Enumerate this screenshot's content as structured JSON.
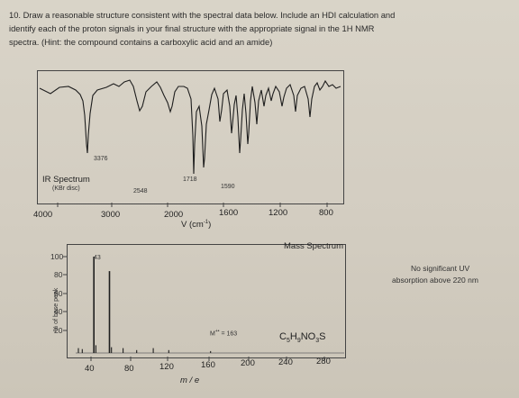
{
  "question": {
    "lines": [
      "10. Draw a reasonable structure consistent with the spectral data below.  Include an HDI calculation and",
      "identify each of the proton signals in your final structure with the appropriate signal in the 1H NMR",
      "spectra. (Hint: the compound contains a carboxylic acid and an amide)"
    ]
  },
  "ir": {
    "title": "IR Spectrum",
    "subtitle": "(KBr disc)",
    "peak_labels": [
      "3376",
      "2548",
      "1718",
      "1590"
    ],
    "x_ticks": [
      "4000",
      "3000",
      "2000",
      "1600",
      "1200",
      "800"
    ],
    "x_label": "V (cm",
    "x_label_sup": "-1",
    "x_label_close": ")"
  },
  "ms": {
    "title": "Mass Spectrum",
    "y_ticks": [
      "100",
      "80",
      "60",
      "40",
      "20"
    ],
    "y_label": "% of base peak",
    "base_peak_label": "43",
    "molecular_ion_label": "M",
    "molecular_ion_sup": "+•",
    "molecular_ion_value": "= 163",
    "formula_parts": [
      "C",
      "5",
      "H",
      "9",
      "NO",
      "3",
      "S"
    ],
    "x_ticks": [
      "40",
      "80",
      "120",
      "160",
      "200",
      "240",
      "280"
    ],
    "x_label": "m / e"
  },
  "uv_note": {
    "line1": "No significant UV",
    "line2": "absorption above 220 nm"
  },
  "chart_data": [
    {
      "type": "line",
      "title": "IR Spectrum",
      "subtitle": "(KBr disc)",
      "xlabel": "V (cm-1)",
      "x_ticks": [
        4000,
        3000,
        2000,
        1600,
        1200,
        800
      ],
      "xlim": [
        4000,
        600
      ],
      "reversed_x": true,
      "peaks": [
        {
          "wavenumber": 3376,
          "label": "3376"
        },
        {
          "wavenumber": 2548,
          "label": "2548"
        },
        {
          "wavenumber": 1718,
          "label": "1718"
        },
        {
          "wavenumber": 1590,
          "label": "1590"
        }
      ]
    },
    {
      "type": "bar",
      "title": "Mass Spectrum",
      "ylabel": "% of base peak",
      "xlabel": "m / e",
      "xlim": [
        20,
        300
      ],
      "ylim": [
        0,
        100
      ],
      "y_ticks": [
        20,
        40,
        60,
        80,
        100
      ],
      "x_ticks": [
        40,
        80,
        120,
        160,
        200,
        240,
        280
      ],
      "peaks": [
        {
          "mz": 43,
          "intensity": 100
        },
        {
          "mz": 59,
          "intensity": 85
        },
        {
          "mz": 27,
          "intensity": 5
        },
        {
          "mz": 31,
          "intensity": 4
        },
        {
          "mz": 45,
          "intensity": 8
        },
        {
          "mz": 61,
          "intensity": 6
        },
        {
          "mz": 73,
          "intensity": 5
        },
        {
          "mz": 87,
          "intensity": 3
        },
        {
          "mz": 104,
          "intensity": 5
        },
        {
          "mz": 120,
          "intensity": 3
        },
        {
          "mz": 163,
          "intensity": 2
        }
      ],
      "annotations": [
        "43",
        "M+• = 163"
      ]
    }
  ]
}
